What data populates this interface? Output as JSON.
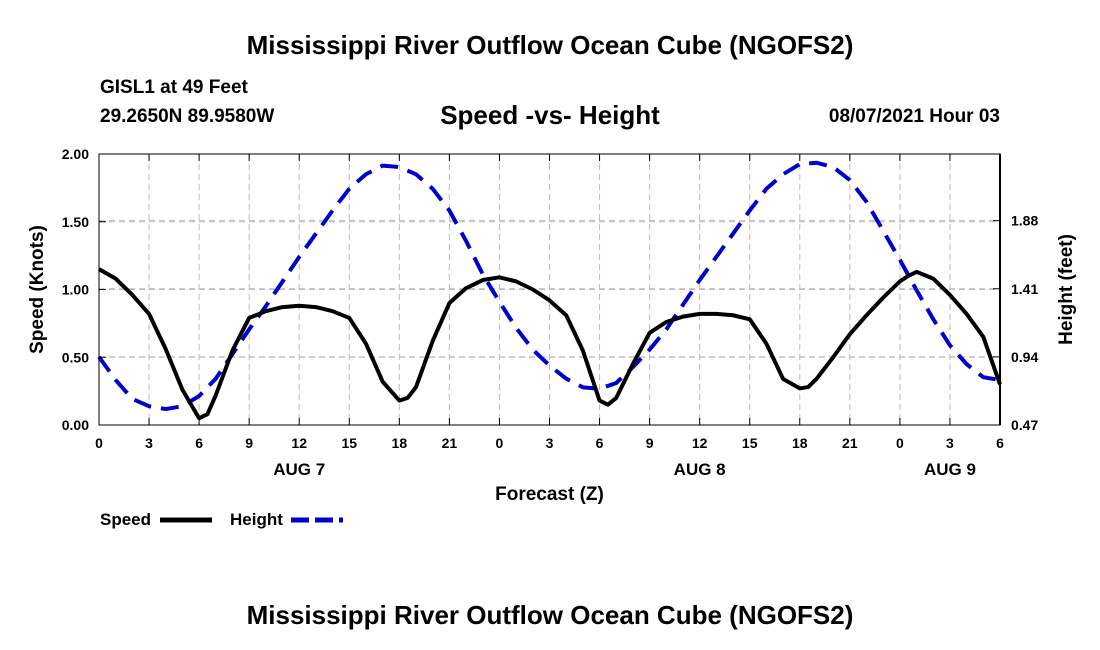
{
  "header": {
    "title": "Mississippi River Outflow Ocean Cube (NGOFS2)",
    "station": "GISL1 at 49 Feet",
    "coords": "29.2650N  89.9580W",
    "datetime": "08/07/2021 Hour 03"
  },
  "footer": {
    "title": "Mississippi River Outflow Ocean Cube (NGOFS2)"
  },
  "legend": {
    "speed_label": "Speed",
    "height_label": "Height"
  },
  "colors": {
    "speed": "#000000",
    "height": "#0000cc",
    "grid": "#bbbbbb",
    "axis": "#000000"
  },
  "chart_data": {
    "type": "line",
    "title": "Speed -vs- Height",
    "xlabel": "Forecast (Z)",
    "ylabel": "Speed (Knots)",
    "y2label": "Height (feet)",
    "x_unit": "hours since 08/07/2021 00Z",
    "xlim": [
      0,
      54
    ],
    "ylim": [
      0,
      2.0
    ],
    "y2lim": [
      0.47,
      2.34
    ],
    "x_ticks": [
      0,
      3,
      6,
      9,
      12,
      15,
      18,
      21,
      24,
      27,
      30,
      33,
      36,
      39,
      42,
      45,
      48,
      51,
      54
    ],
    "x_tick_labels": [
      "0",
      "3",
      "6",
      "9",
      "12",
      "15",
      "18",
      "21",
      "0",
      "3",
      "6",
      "9",
      "12",
      "15",
      "18",
      "21",
      "0",
      "3",
      "6"
    ],
    "y_ticks": [
      0,
      0.5,
      1.0,
      1.5,
      2.0
    ],
    "y_tick_labels": [
      "0.00",
      "0.50",
      "1.00",
      "1.50",
      "2.00"
    ],
    "y2_ticks": [
      0.47,
      0.94,
      1.41,
      1.88
    ],
    "y2_tick_labels": [
      "0.47",
      "0.94",
      "1.41",
      "1.88"
    ],
    "day_labels": [
      {
        "x": 12,
        "label": "AUG 7"
      },
      {
        "x": 36,
        "label": "AUG 8"
      },
      {
        "x": 51,
        "label": "AUG 9"
      }
    ],
    "series": [
      {
        "name": "Speed",
        "axis": "left",
        "style": "solid",
        "x": [
          0,
          1,
          2,
          3,
          4,
          5,
          6,
          6.5,
          7,
          8,
          9,
          10,
          11,
          12,
          13,
          14,
          15,
          16,
          17,
          18,
          18.5,
          19,
          20,
          21,
          22,
          23,
          24,
          25,
          26,
          27,
          28,
          29,
          30,
          30.5,
          31,
          32,
          33,
          34,
          35,
          36,
          37,
          38,
          39,
          40,
          41,
          42,
          42.5,
          43,
          44,
          45,
          46,
          47,
          48,
          48.5,
          49,
          50,
          51,
          52,
          53,
          54
        ],
        "y": [
          1.15,
          1.08,
          0.96,
          0.82,
          0.56,
          0.26,
          0.05,
          0.08,
          0.22,
          0.55,
          0.79,
          0.84,
          0.87,
          0.88,
          0.87,
          0.84,
          0.79,
          0.6,
          0.32,
          0.18,
          0.2,
          0.28,
          0.62,
          0.9,
          1.01,
          1.07,
          1.09,
          1.06,
          1.0,
          0.92,
          0.81,
          0.55,
          0.18,
          0.15,
          0.2,
          0.45,
          0.68,
          0.76,
          0.8,
          0.82,
          0.82,
          0.81,
          0.78,
          0.6,
          0.34,
          0.27,
          0.28,
          0.34,
          0.5,
          0.67,
          0.81,
          0.94,
          1.06,
          1.1,
          1.13,
          1.08,
          0.96,
          0.82,
          0.65,
          0.3
        ]
      },
      {
        "name": "Height",
        "axis": "right",
        "style": "dashed",
        "x": [
          0,
          1,
          2,
          3,
          4,
          5,
          6,
          7,
          8,
          9,
          10,
          11,
          12,
          13,
          14,
          15,
          16,
          17,
          18,
          19,
          20,
          21,
          22,
          23,
          24,
          25,
          26,
          27,
          28,
          29,
          30,
          31,
          32,
          33,
          34,
          35,
          36,
          37,
          38,
          39,
          40,
          41,
          42,
          43,
          44,
          45,
          46,
          47,
          48,
          49,
          50,
          51,
          52,
          53,
          54
        ],
        "y": [
          0.94,
          0.78,
          0.65,
          0.6,
          0.58,
          0.6,
          0.67,
          0.79,
          0.96,
          1.13,
          1.29,
          1.46,
          1.63,
          1.79,
          1.95,
          2.1,
          2.2,
          2.26,
          2.25,
          2.2,
          2.1,
          1.95,
          1.74,
          1.51,
          1.32,
          1.14,
          0.99,
          0.88,
          0.79,
          0.73,
          0.72,
          0.76,
          0.87,
          0.99,
          1.13,
          1.3,
          1.47,
          1.63,
          1.79,
          1.95,
          2.1,
          2.2,
          2.27,
          2.28,
          2.25,
          2.16,
          2.01,
          1.81,
          1.61,
          1.4,
          1.2,
          1.02,
          0.89,
          0.8,
          0.78
        ]
      }
    ]
  }
}
